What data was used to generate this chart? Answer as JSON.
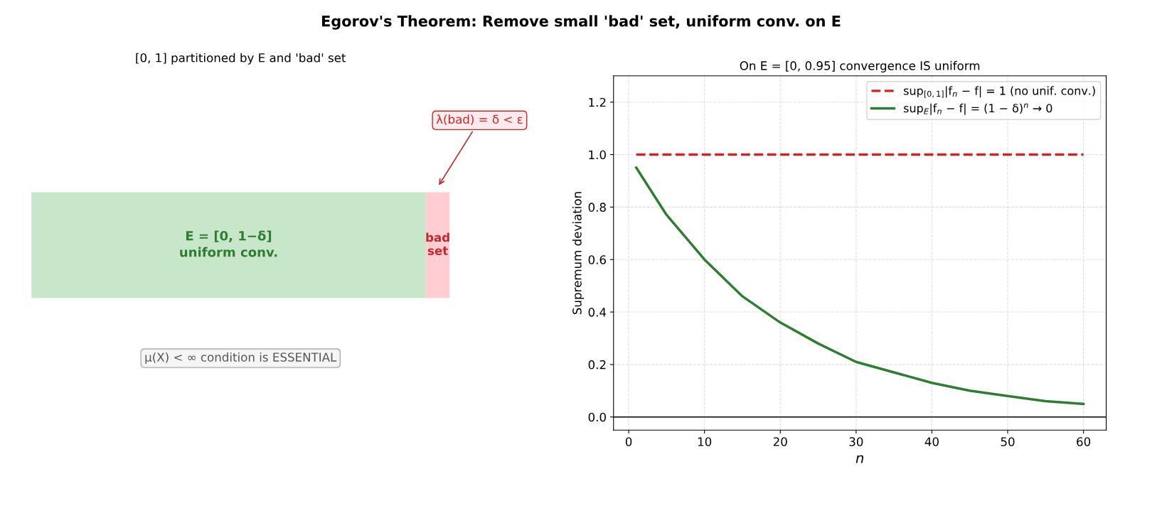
{
  "chart_data": [
    {
      "type": "other",
      "title": "Egorov's Theorem: Remove small 'bad' set, uniform conv. on E",
      "subtitle": "[0, 1] partitioned by E and 'bad' set",
      "annotations": [
        "E = [0, 1−δ]\nuniform conv.",
        "bad\nset",
        "λ(bad) = δ < ε",
        "μ(X) < ∞ condition is ESSENTIAL"
      ]
    },
    {
      "type": "line",
      "title": "On E = [0, 0.95] convergence IS uniform",
      "xlabel": "n",
      "ylabel": "Supremum deviation",
      "xlim": [
        -2,
        63
      ],
      "ylim": [
        -0.05,
        1.3
      ],
      "xticks": [
        0,
        10,
        20,
        30,
        40,
        50,
        60
      ],
      "yticks": [
        {
          "value": 0,
          "label": "0.0"
        },
        0.2,
        0.4,
        0.6,
        0.8,
        {
          "value": 1,
          "label": "1.0"
        },
        1.2
      ],
      "grid": true,
      "legend": "top right",
      "series": [
        {
          "name": "sup$_{[0,1]}$|f$_{n}$ − f| = 1 (no unif. conv.)",
          "color": "#c62828",
          "line_style": "dashed",
          "x": [
            1,
            60
          ],
          "values": [
            1.0,
            1.0
          ]
        },
        {
          "name": "sup$_{E}$|f$_{n}$ − f| = (1 − δ)$^{n}$ → 0",
          "color": "#2e7d32",
          "line_style": "solid",
          "x": [
            1,
            5,
            10,
            15,
            20,
            25,
            30,
            35,
            40,
            45,
            50,
            55,
            60
          ],
          "values": [
            0.95,
            0.77,
            0.6,
            0.46,
            0.36,
            0.28,
            0.21,
            0.17,
            0.13,
            0.1,
            0.08,
            0.06,
            0.05
          ]
        }
      ],
      "ref_lines": [
        {
          "axis": "y",
          "value": 0,
          "color": "#000000",
          "line_style": "solid"
        }
      ]
    }
  ]
}
